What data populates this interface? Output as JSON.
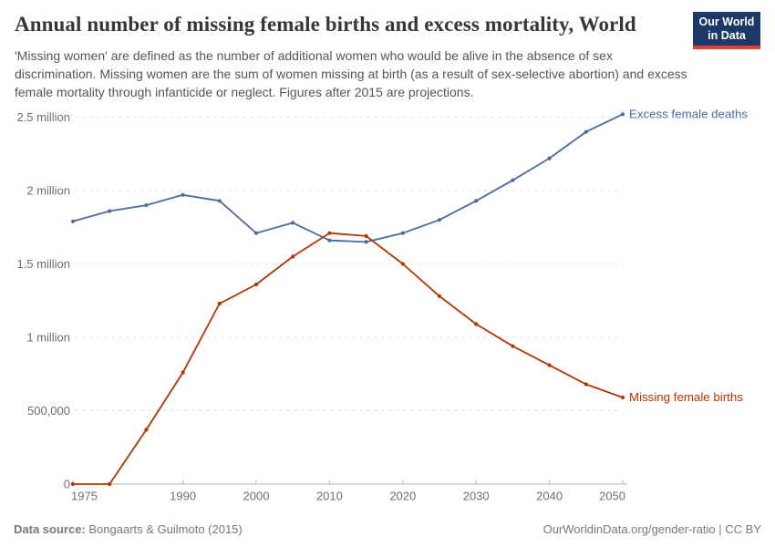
{
  "header": {
    "title": "Annual number of missing female births and excess mortality, World",
    "subtitle": "'Missing women' are defined as the number of additional women who would be alive in the absence of sex discrimination. Missing women are the sum of women missing at birth (as a result of sex-selective abortion) and excess female mortality through infanticide or neglect. Figures after 2015 are projections.",
    "logo": {
      "line1": "Our World",
      "line2": "in Data",
      "bg_color": "#1b3867",
      "bar_color": "#dc3e38"
    }
  },
  "chart_data": {
    "type": "line",
    "title": "Annual number of missing female births and excess mortality, World",
    "x": [
      1975,
      1980,
      1985,
      1990,
      1995,
      2000,
      2005,
      2010,
      2015,
      2020,
      2025,
      2030,
      2035,
      2040,
      2045,
      2050
    ],
    "series": [
      {
        "name": "Excess female deaths",
        "color": "#4C6A9C",
        "values": [
          1790000,
          1860000,
          1900000,
          1970000,
          1930000,
          1710000,
          1780000,
          1660000,
          1650000,
          1710000,
          1800000,
          1930000,
          2070000,
          2220000,
          2400000,
          2520000
        ]
      },
      {
        "name": "Missing female births",
        "color": "#B13507",
        "values": [
          0,
          0,
          370000,
          760000,
          1230000,
          1360000,
          1550000,
          1710000,
          1690000,
          1500000,
          1280000,
          1090000,
          940000,
          810000,
          680000,
          590000
        ]
      }
    ],
    "xlim": [
      1975,
      2050
    ],
    "ylim": [
      0,
      2500000
    ],
    "x_ticks": [
      1975,
      1990,
      2000,
      2010,
      2020,
      2030,
      2040,
      2050
    ],
    "y_ticks": [
      {
        "value": 0,
        "label": "0"
      },
      {
        "value": 500000,
        "label": "500,000"
      },
      {
        "value": 1000000,
        "label": "1 million"
      },
      {
        "value": 1500000,
        "label": "1.5 million"
      },
      {
        "value": 2000000,
        "label": "2 million"
      },
      {
        "value": 2500000,
        "label": "2.5 million"
      }
    ],
    "grid": "horizontal-dashed",
    "legend_position": "end-of-line"
  },
  "footer": {
    "source_label": "Data source:",
    "source_value": "Bongaarts & Guilmoto (2015)",
    "credit": "OurWorldinData.org/gender-ratio | CC BY"
  }
}
